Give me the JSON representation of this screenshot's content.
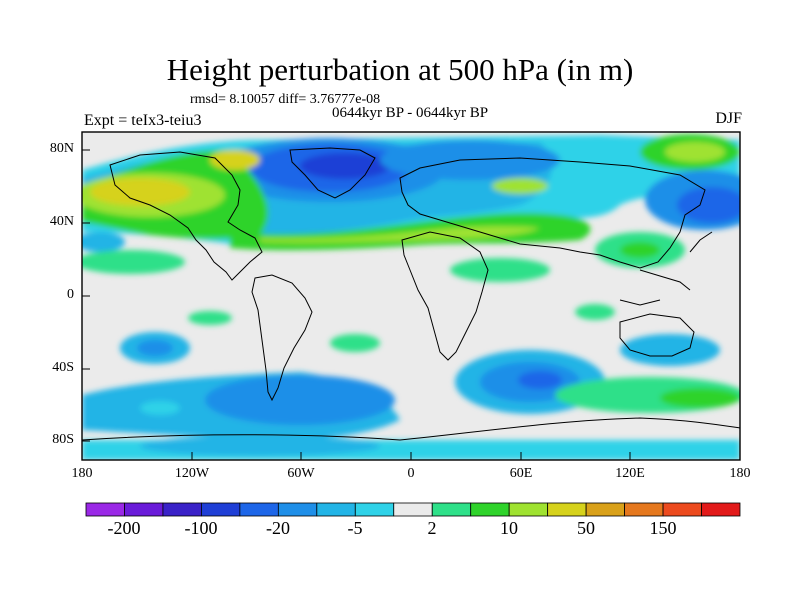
{
  "title": "Height perturbation at 500 hPa (in m)",
  "stats": "rmsd= 8.10057 diff= 3.76777e-08",
  "period": "0644kyr BP - 0644kyr BP",
  "experiment": "Expt = teIx3-teiu3",
  "season": "DJF",
  "y_ticks": [
    "80N",
    "40N",
    "0",
    "40S",
    "80S"
  ],
  "x_ticks": [
    "180",
    "120W",
    "60W",
    "0",
    "60E",
    "120E",
    "180"
  ],
  "colorbar": {
    "colors": [
      "#9a28e6",
      "#6a1bd9",
      "#3a22c8",
      "#1f3fd6",
      "#1e66e8",
      "#1f8fe8",
      "#22b4e6",
      "#2fd2e8",
      "#ebebeb",
      "#2ee089",
      "#2fd32b",
      "#9fe230",
      "#d6d21c",
      "#d9a11a",
      "#e5781e",
      "#ec4a1e",
      "#e21a1a"
    ],
    "labels": [
      "-200",
      "-100",
      "-20",
      "-5",
      "2",
      "10",
      "50",
      "150"
    ]
  }
}
